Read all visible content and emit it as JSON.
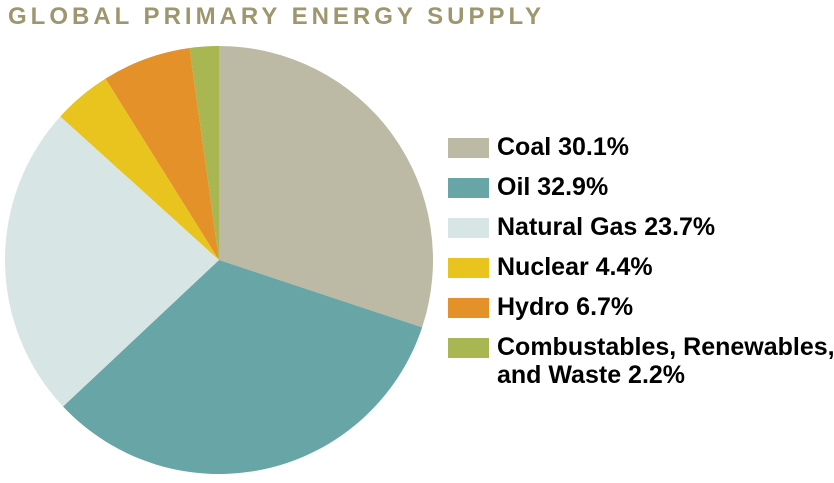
{
  "title": "GLOBAL PRIMARY ENERGY SUPPLY",
  "colors": {
    "background": "#ffffff",
    "title_text": "#9e966f",
    "legend_text": "#000000"
  },
  "chart_data": {
    "type": "pie",
    "title": "GLOBAL PRIMARY ENERGY SUPPLY",
    "start_angle_deg": 0,
    "direction": "clockwise",
    "legend_position": "right",
    "total": 100,
    "slices": [
      {
        "label": "Coal",
        "value": 30.1,
        "color": "#bcb9a5",
        "legend_lines": [
          "Coal 30.1%"
        ]
      },
      {
        "label": "Oil",
        "value": 32.9,
        "color": "#68a5a7",
        "legend_lines": [
          "Oil 32.9%"
        ]
      },
      {
        "label": "Natural Gas",
        "value": 23.7,
        "color": "#d7e5e4",
        "legend_lines": [
          "Natural Gas 23.7%"
        ]
      },
      {
        "label": "Nuclear",
        "value": 4.4,
        "color": "#e9c41e",
        "legend_lines": [
          "Nuclear 4.4%"
        ]
      },
      {
        "label": "Hydro",
        "value": 6.7,
        "color": "#e4912a",
        "legend_lines": [
          "Hydro 6.7%"
        ]
      },
      {
        "label": "Combustables, Renewables, and Waste",
        "value": 2.2,
        "color": "#a8b751",
        "legend_lines": [
          "Combustables, Renewables,",
          "and Waste 2.2%"
        ]
      }
    ]
  }
}
